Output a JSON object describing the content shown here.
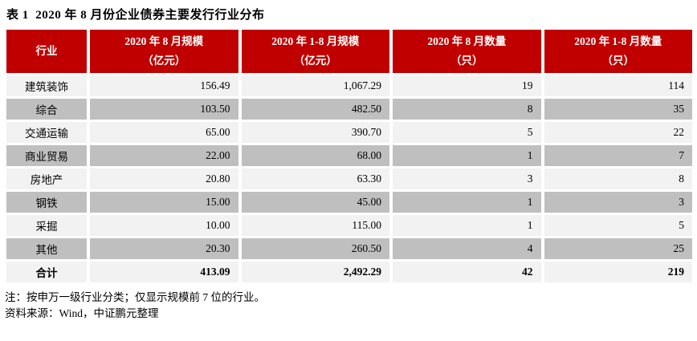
{
  "title": "表 1  2020 年 8 月份企业债券主要发行行业分布",
  "table": {
    "columns": [
      {
        "line1": "行业",
        "line2": ""
      },
      {
        "line1": "2020 年 8 月规模",
        "line2": "（亿元）"
      },
      {
        "line1": "2020 年 1-8 月规模",
        "line2": "（亿元）"
      },
      {
        "line1": "2020 年 8 月数量",
        "line2": "（只）"
      },
      {
        "line1": "2020 年 1-8 月数量",
        "line2": "（只）"
      }
    ],
    "rows": [
      {
        "industry": "建筑装饰",
        "aug_scale": "156.49",
        "ytd_scale": "1,067.29",
        "aug_count": "19",
        "ytd_count": "114"
      },
      {
        "industry": "综合",
        "aug_scale": "103.50",
        "ytd_scale": "482.50",
        "aug_count": "8",
        "ytd_count": "35"
      },
      {
        "industry": "交通运输",
        "aug_scale": "65.00",
        "ytd_scale": "390.70",
        "aug_count": "5",
        "ytd_count": "22"
      },
      {
        "industry": "商业贸易",
        "aug_scale": "22.00",
        "ytd_scale": "68.00",
        "aug_count": "1",
        "ytd_count": "7"
      },
      {
        "industry": "房地产",
        "aug_scale": "20.80",
        "ytd_scale": "63.30",
        "aug_count": "3",
        "ytd_count": "8"
      },
      {
        "industry": "钢铁",
        "aug_scale": "15.00",
        "ytd_scale": "45.00",
        "aug_count": "1",
        "ytd_count": "3"
      },
      {
        "industry": "采掘",
        "aug_scale": "10.00",
        "ytd_scale": "115.00",
        "aug_count": "1",
        "ytd_count": "5"
      },
      {
        "industry": "其他",
        "aug_scale": "20.30",
        "ytd_scale": "260.50",
        "aug_count": "4",
        "ytd_count": "25"
      },
      {
        "industry": "合计",
        "aug_scale": "413.09",
        "ytd_scale": "2,492.29",
        "aug_count": "42",
        "ytd_count": "219"
      }
    ]
  },
  "notes": {
    "note1": "注：按申万一级行业分类；仅显示规模前 7 位的行业。",
    "note2": "资料来源：Wind，中证鹏元整理"
  },
  "colors": {
    "header_bg": "#c00000",
    "row_light": "#f2f2f2",
    "row_dark": "#bfbfbf",
    "text": "#000000"
  }
}
